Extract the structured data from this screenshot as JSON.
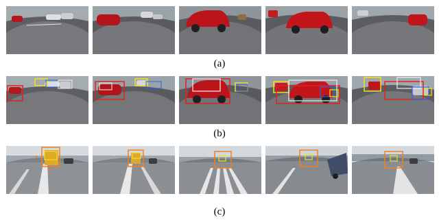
{
  "figure": {
    "rows": [
      {
        "caption": "(a)",
        "panels": 5,
        "boxes": false
      },
      {
        "caption": "(b)",
        "panels": 5,
        "boxes": true
      },
      {
        "caption": "(c)",
        "panels": 5,
        "boxes": true
      }
    ]
  },
  "colors": {
    "road": "#6f6f72",
    "road_dark": "#4d4d50",
    "sky": "#d9dde2",
    "car_red": "#c4161c",
    "car_white": "#e8e8e8",
    "box_red": "#e02020",
    "box_yellow": "#f0e020",
    "box_white": "#f0f0f0",
    "box_blue": "#3060e0",
    "box_orange": "#f08020",
    "bus_yellow": "#e8b020"
  }
}
